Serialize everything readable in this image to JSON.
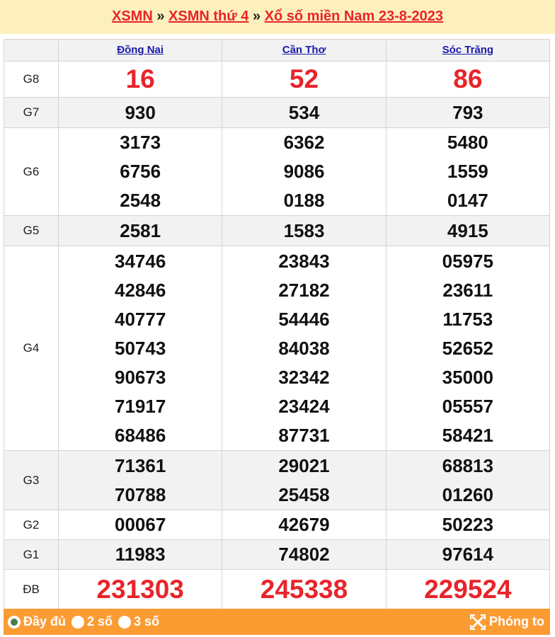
{
  "breadcrumb": {
    "items": [
      "XSMN",
      "XSMN thứ 4",
      "Xổ số miền Nam 23-8-2023"
    ],
    "separator": "»"
  },
  "provinces": [
    "Đồng Nai",
    "Cần Thơ",
    "Sóc Trăng"
  ],
  "prizes": [
    {
      "label": "G8",
      "values": [
        [
          "16"
        ],
        [
          "52"
        ],
        [
          "86"
        ]
      ],
      "highlight": true
    },
    {
      "label": "G7",
      "values": [
        [
          "930"
        ],
        [
          "534"
        ],
        [
          "793"
        ]
      ]
    },
    {
      "label": "G6",
      "values": [
        [
          "3173",
          "6756",
          "2548"
        ],
        [
          "6362",
          "9086",
          "0188"
        ],
        [
          "5480",
          "1559",
          "0147"
        ]
      ]
    },
    {
      "label": "G5",
      "values": [
        [
          "2581"
        ],
        [
          "1583"
        ],
        [
          "4915"
        ]
      ]
    },
    {
      "label": "G4",
      "values": [
        [
          "34746",
          "42846",
          "40777",
          "50743",
          "90673",
          "71917",
          "68486"
        ],
        [
          "23843",
          "27182",
          "54446",
          "84038",
          "32342",
          "23424",
          "87731"
        ],
        [
          "05975",
          "23611",
          "11753",
          "52652",
          "35000",
          "05557",
          "58421"
        ]
      ]
    },
    {
      "label": "G3",
      "values": [
        [
          "71361",
          "70788"
        ],
        [
          "29021",
          "25458"
        ],
        [
          "68813",
          "01260"
        ]
      ]
    },
    {
      "label": "G2",
      "values": [
        [
          "00067"
        ],
        [
          "42679"
        ],
        [
          "50223"
        ]
      ]
    },
    {
      "label": "G1",
      "values": [
        [
          "11983"
        ],
        [
          "74802"
        ],
        [
          "97614"
        ]
      ]
    },
    {
      "label": "ĐB",
      "values": [
        [
          "231303"
        ],
        [
          "245338"
        ],
        [
          "229524"
        ]
      ],
      "highlight": true
    }
  ],
  "footer": {
    "options": [
      "Đầy đủ",
      "2 số",
      "3 số"
    ],
    "selected": "Đầy đủ",
    "zoom_label": "Phóng to",
    "zoom_icon": "expand-icon"
  },
  "colors": {
    "accent": "#e8242b",
    "footer": "#fb9c33",
    "header_bg": "#fdf0bd"
  }
}
